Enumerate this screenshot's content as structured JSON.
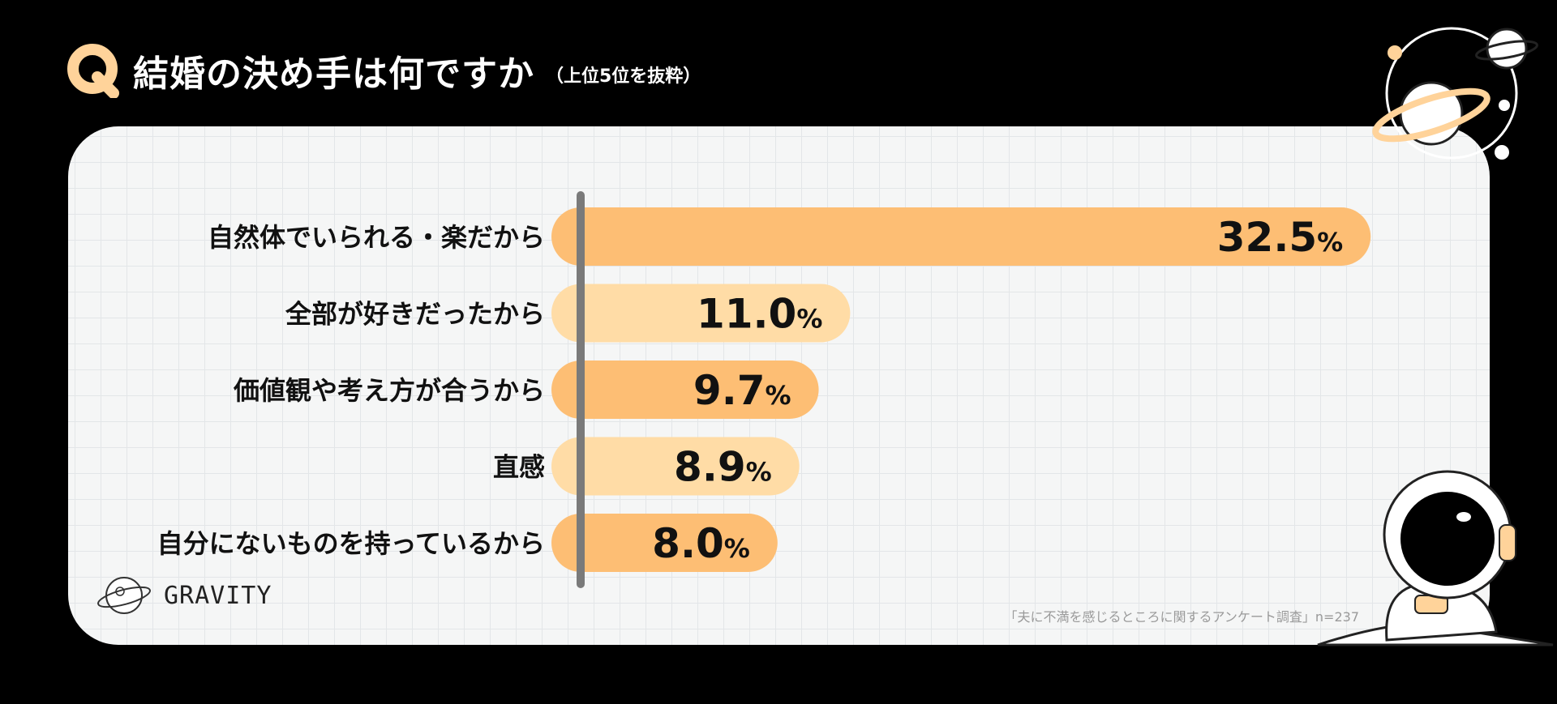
{
  "title": {
    "badge": "Q",
    "main": "結婚の決め手は何ですか",
    "sub": "（上位5位を抜粋）"
  },
  "source": "「夫に不満を感じるところに関するアンケート調査」n=237",
  "brand": {
    "name": "GRAVITY"
  },
  "colors": {
    "bar_dark": "#FDBE74",
    "bar_light": "#FFDCA6",
    "axis": "#7a7a7a",
    "badge": "#FFD39A"
  },
  "chart_data": {
    "type": "bar",
    "orientation": "horizontal",
    "unit": "%",
    "categories": [
      "自然体でいられる・楽だから",
      "全部が好きだったから",
      "価値観や考え方が合うから",
      "直感",
      "自分にないものを持っているから"
    ],
    "values": [
      32.5,
      11.0,
      9.7,
      8.9,
      8.0
    ],
    "value_labels": [
      "32.5",
      "11.0",
      "9.7",
      "8.9",
      "8.0"
    ],
    "title": "結婚の決め手は何ですか",
    "xlim": [
      0,
      35
    ],
    "grid": true
  }
}
